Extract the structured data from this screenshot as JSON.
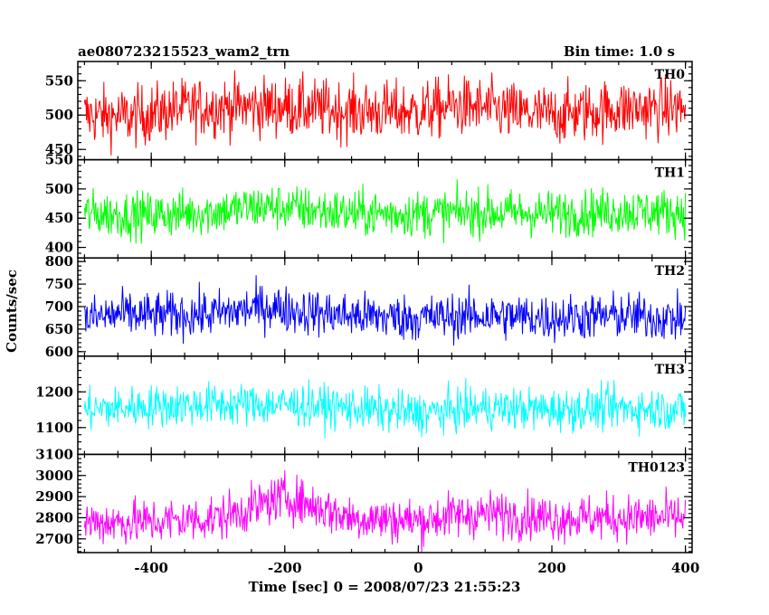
{
  "chart_data": {
    "type": "line",
    "title": "ae080723215523_wam2_trn",
    "subtitle": "Bin time: 1.0 s",
    "xlabel": "Time [sec] 0 = 2008/07/23 21:55:23",
    "ylabel": "Counts/sec",
    "xlim": [
      -510,
      410
    ],
    "xticks": [
      -400,
      -200,
      0,
      200,
      400
    ],
    "grid": false,
    "panels": [
      {
        "name": "TH0",
        "color": "#ff0000",
        "ylim": [
          435,
          578
        ],
        "yticks": [
          450,
          500,
          550
        ],
        "x_range": [
          -500,
          400
        ],
        "mean": 508,
        "noise": 22,
        "trend": [
          [
            -500,
            500
          ],
          [
            -430,
            497
          ],
          [
            -350,
            510
          ],
          [
            -300,
            512
          ],
          [
            -200,
            512
          ],
          [
            -100,
            506
          ],
          [
            0,
            505
          ],
          [
            50,
            513
          ],
          [
            100,
            510
          ],
          [
            150,
            503
          ],
          [
            200,
            500
          ],
          [
            300,
            509
          ],
          [
            400,
            510
          ]
        ]
      },
      {
        "name": "TH1",
        "color": "#00ff00",
        "ylim": [
          382,
          550
        ],
        "yticks": [
          400,
          450,
          500,
          550
        ],
        "x_range": [
          -500,
          400
        ],
        "mean": 460,
        "noise": 20,
        "trend": [
          [
            -500,
            458
          ],
          [
            -400,
            455
          ],
          [
            -300,
            462
          ],
          [
            -230,
            470
          ],
          [
            -200,
            468
          ],
          [
            -100,
            458
          ],
          [
            0,
            458
          ],
          [
            100,
            460
          ],
          [
            200,
            458
          ],
          [
            300,
            462
          ],
          [
            400,
            460
          ]
        ]
      },
      {
        "name": "TH2",
        "color": "#0000ff",
        "ylim": [
          590,
          808
        ],
        "yticks": [
          600,
          650,
          700,
          750,
          800
        ],
        "x_range": [
          -500,
          400
        ],
        "mean": 680,
        "noise": 26,
        "trend": [
          [
            -500,
            672
          ],
          [
            -450,
            683
          ],
          [
            -400,
            680
          ],
          [
            -300,
            684
          ],
          [
            -230,
            700
          ],
          [
            -180,
            690
          ],
          [
            -100,
            680
          ],
          [
            0,
            675
          ],
          [
            100,
            680
          ],
          [
            200,
            675
          ],
          [
            300,
            680
          ],
          [
            400,
            672
          ]
        ]
      },
      {
        "name": "TH3",
        "color": "#00ffff",
        "ylim": [
          1025,
          1300
        ],
        "yticks": [
          1100,
          1200
        ],
        "x_range": [
          -500,
          400
        ],
        "mean": 1150,
        "noise": 30,
        "trend": [
          [
            -500,
            1150
          ],
          [
            -400,
            1160
          ],
          [
            -300,
            1165
          ],
          [
            -200,
            1165
          ],
          [
            -100,
            1155
          ],
          [
            0,
            1140
          ],
          [
            100,
            1155
          ],
          [
            200,
            1150
          ],
          [
            300,
            1155
          ],
          [
            400,
            1150
          ]
        ]
      },
      {
        "name": "TH0123",
        "color": "#ff00ff",
        "ylim": [
          2635,
          3100
        ],
        "yticks": [
          2700,
          2800,
          2900,
          3000,
          3100
        ],
        "x_range": [
          -500,
          400
        ],
        "mean": 2800,
        "noise": 55,
        "trend": [
          [
            -500,
            2780
          ],
          [
            -400,
            2780
          ],
          [
            -300,
            2800
          ],
          [
            -250,
            2845
          ],
          [
            -200,
            2900
          ],
          [
            -150,
            2850
          ],
          [
            -100,
            2800
          ],
          [
            0,
            2785
          ],
          [
            50,
            2810
          ],
          [
            100,
            2820
          ],
          [
            200,
            2800
          ],
          [
            300,
            2800
          ],
          [
            400,
            2800
          ]
        ]
      }
    ]
  }
}
